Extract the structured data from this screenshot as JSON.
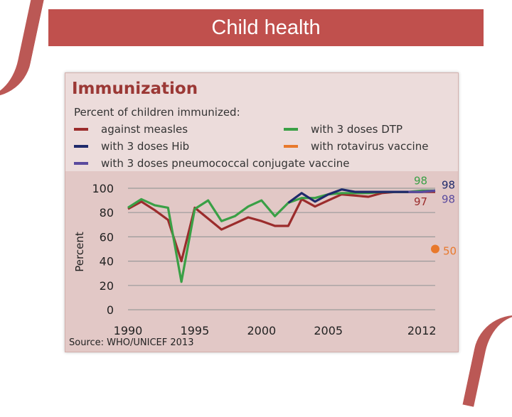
{
  "slide": {
    "title": "Child health"
  },
  "figure": {
    "title": "Immunization",
    "subtitle": "Percent of children immunized:",
    "source": "Source: WHO/UNICEF 2013"
  },
  "colors": {
    "measles": "#9b2c2c",
    "hib": "#1f2a6b",
    "pneumo": "#5a4a9e",
    "dtp": "#3aa046",
    "rotavirus": "#e8792c"
  },
  "legend": [
    {
      "key": "measles",
      "label": "against measles"
    },
    {
      "key": "hib",
      "label": "with 3 doses Hib"
    },
    {
      "key": "pneumo",
      "label": "with 3 doses pneumococcal conjugate vaccine"
    },
    {
      "key": "dtp",
      "label": "with 3 doses DTP"
    },
    {
      "key": "rotavirus",
      "label": "with rotavirus vaccine"
    }
  ],
  "chart_data": {
    "type": "line",
    "title": "Immunization",
    "subtitle": "Percent of children immunized:",
    "ylabel": "Percent",
    "xlabel": "",
    "xlim": [
      1990,
      2013
    ],
    "ylim": [
      0,
      100
    ],
    "x_ticks": [
      "1990",
      "1995",
      "2000",
      "2005",
      "2012"
    ],
    "x_tick_values": [
      1990,
      1995,
      2000,
      2005,
      2012
    ],
    "y_ticks": [
      "0",
      "20",
      "40",
      "60",
      "80",
      "100"
    ],
    "y_tick_values": [
      0,
      20,
      40,
      60,
      80,
      100
    ],
    "grid": "horizontal",
    "series": [
      {
        "key": "measles",
        "name": "against measles",
        "x": [
          1990,
          1991,
          1992,
          1993,
          1994,
          1995,
          1996,
          1997,
          1998,
          1999,
          2000,
          2001,
          2002,
          2003,
          2004,
          2005,
          2006,
          2007,
          2008,
          2009,
          2010,
          2011,
          2012,
          2013
        ],
        "values": [
          83,
          89,
          82,
          74,
          40,
          84,
          75,
          66,
          71,
          76,
          73,
          69,
          69,
          91,
          85,
          90,
          95,
          94,
          93,
          96,
          97,
          97,
          97,
          97
        ]
      },
      {
        "key": "dtp",
        "name": "with 3 doses DTP",
        "x": [
          1990,
          1991,
          1992,
          1993,
          1994,
          1995,
          1996,
          1997,
          1998,
          1999,
          2000,
          2001,
          2002,
          2003,
          2004,
          2005,
          2006,
          2007,
          2008,
          2009,
          2010,
          2011,
          2012,
          2013
        ],
        "values": [
          84,
          91,
          86,
          84,
          23,
          83,
          90,
          73,
          77,
          85,
          90,
          77,
          88,
          92,
          92,
          95,
          96,
          96,
          96,
          97,
          97,
          97,
          98,
          98
        ]
      },
      {
        "key": "hib",
        "name": "with 3 doses Hib",
        "x": [
          2002,
          2003,
          2004,
          2005,
          2006,
          2007,
          2008,
          2009,
          2010,
          2011,
          2012,
          2013
        ],
        "values": [
          88,
          96,
          89,
          95,
          99,
          97,
          97,
          97,
          97,
          97,
          97,
          98
        ]
      },
      {
        "key": "pneumo",
        "name": "with 3 doses pneumococcal conjugate vaccine",
        "x": [
          2011,
          2012,
          2013
        ],
        "values": [
          97,
          97,
          98
        ]
      },
      {
        "key": "rotavirus",
        "name": "with rotavirus vaccine",
        "x": [
          2013
        ],
        "values": [
          50
        ],
        "marker": "point"
      }
    ],
    "annotations": [
      {
        "text": "98",
        "series": "dtp",
        "position": "above-end"
      },
      {
        "text": "98",
        "series": "hib",
        "position": "right-end"
      },
      {
        "text": "97",
        "series": "measles",
        "position": "below-end"
      },
      {
        "text": "98",
        "series": "pneumo",
        "position": "right-below-end"
      },
      {
        "text": "50",
        "series": "rotavirus",
        "position": "right"
      }
    ]
  }
}
